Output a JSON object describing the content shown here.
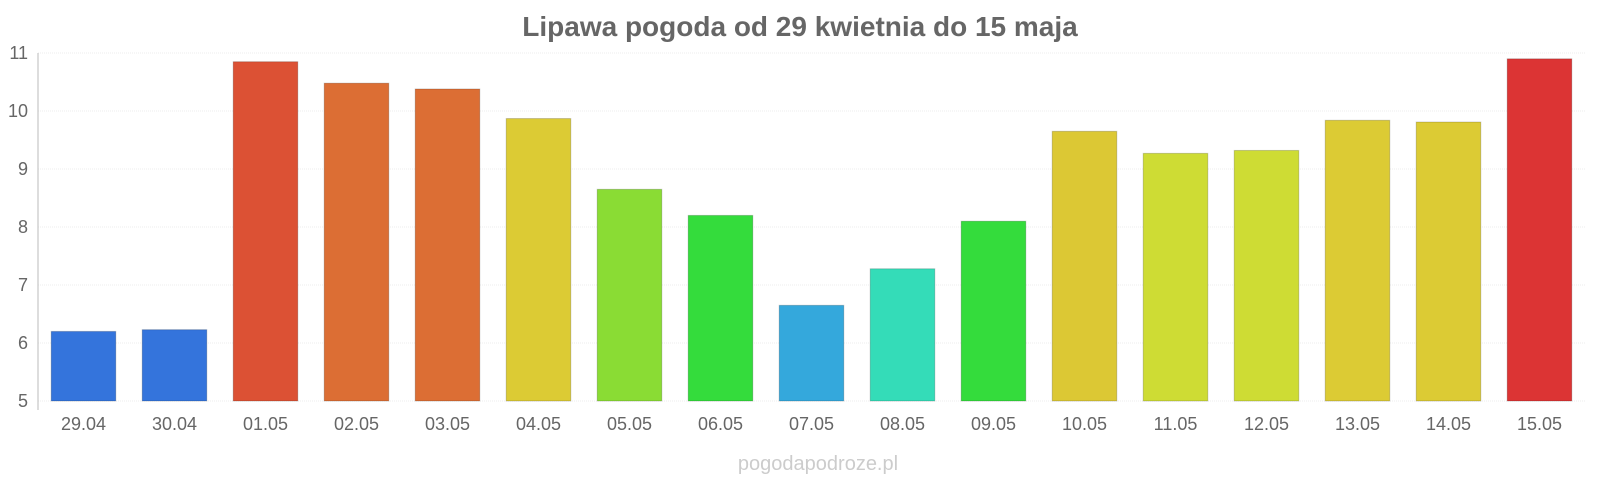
{
  "chart_data": {
    "type": "bar",
    "title": "Lipawa pogoda od 29 kwietnia do 15 maja",
    "xlabel": "",
    "ylabel": "",
    "ylim": [
      5,
      11
    ],
    "yticks": [
      "5",
      "6",
      "7",
      "8",
      "9",
      "10",
      "11"
    ],
    "grid": true,
    "legend": "none",
    "categories": [
      "29.04",
      "30.04",
      "01.05",
      "02.05",
      "03.05",
      "04.05",
      "05.05",
      "06.05",
      "07.05",
      "08.05",
      "09.05",
      "10.05",
      "11.05",
      "12.05",
      "13.05",
      "14.05",
      "15.05"
    ],
    "values": [
      6.2,
      6.23,
      10.85,
      10.48,
      10.38,
      9.87,
      8.65,
      8.2,
      6.65,
      7.28,
      8.1,
      9.65,
      9.27,
      9.32,
      9.84,
      9.81,
      10.9
    ],
    "colors": [
      "#3474dc",
      "#3474dc",
      "#dc5134",
      "#dc6e34",
      "#dc6e34",
      "#dccb34",
      "#8adc34",
      "#34dc3c",
      "#34a8dc",
      "#34dcb8",
      "#34dc3c",
      "#dcc834",
      "#cedc34",
      "#cedc34",
      "#dccb34",
      "#dccb34",
      "#dc3434"
    ]
  },
  "watermark": "pogodapodroze.pl"
}
